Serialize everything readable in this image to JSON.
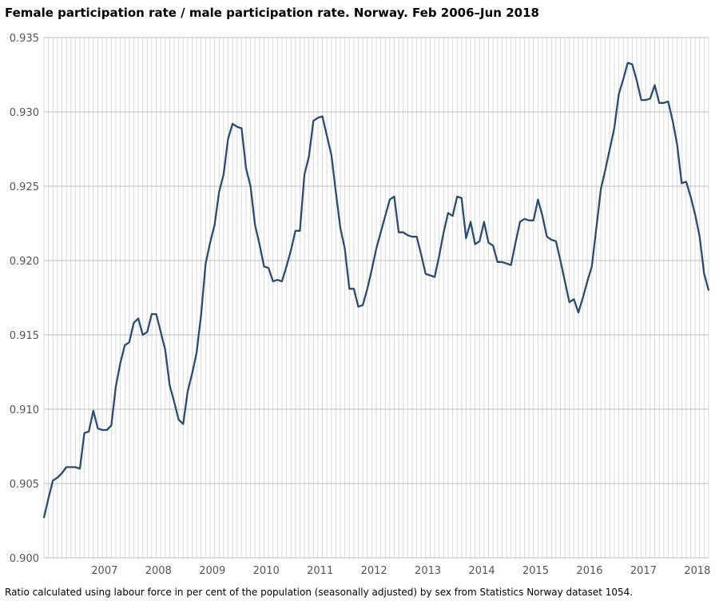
{
  "chart_data": {
    "type": "line",
    "title": "Female participation rate / male participation rate. Norway. Feb 2006–Jun 2018",
    "note": "Ratio calculated using labour force in per cent of the population (seasonally adjusted) by sex from Statistics Norway dataset 1054.",
    "xlabel": "",
    "ylabel": "",
    "start": "2006-02",
    "end": "2018-06",
    "frequency": "monthly",
    "ylim": [
      0.9,
      0.935
    ],
    "yticks": [
      "0.900",
      "0.905",
      "0.910",
      "0.915",
      "0.920",
      "0.925",
      "0.930",
      "0.935"
    ],
    "xticks": [
      "2007",
      "2008",
      "2009",
      "2010",
      "2011",
      "2012",
      "2013",
      "2014",
      "2015",
      "2016",
      "2017",
      "2018"
    ],
    "grid": true,
    "line_color": "#2b4c72",
    "series": [
      {
        "name": "ratio",
        "values": [
          0.9027,
          0.904,
          0.9052,
          0.9054,
          0.9057,
          0.9061,
          0.9061,
          0.9061,
          0.906,
          0.9084,
          0.9085,
          0.9099,
          0.9087,
          0.9086,
          0.9086,
          0.9089,
          0.9115,
          0.9131,
          0.9143,
          0.9145,
          0.9158,
          0.9161,
          0.915,
          0.9152,
          0.9164,
          0.9164,
          0.9152,
          0.914,
          0.9116,
          0.9105,
          0.9093,
          0.909,
          0.9112,
          0.9124,
          0.9138,
          0.9164,
          0.9198,
          0.9212,
          0.9224,
          0.9246,
          0.9258,
          0.9282,
          0.9292,
          0.929,
          0.9289,
          0.9262,
          0.925,
          0.9224,
          0.9211,
          0.9196,
          0.9195,
          0.9186,
          0.9187,
          0.9186,
          0.9196,
          0.9207,
          0.922,
          0.922,
          0.9258,
          0.927,
          0.9294,
          0.9296,
          0.9297,
          0.9284,
          0.9271,
          0.9246,
          0.9222,
          0.9208,
          0.9181,
          0.9181,
          0.9169,
          0.917,
          0.9181,
          0.9194,
          0.9208,
          0.9219,
          0.923,
          0.9241,
          0.9243,
          0.9219,
          0.9219,
          0.9217,
          0.9216,
          0.9216,
          0.9204,
          0.9191,
          0.919,
          0.9189,
          0.9203,
          0.9219,
          0.9232,
          0.923,
          0.9243,
          0.9242,
          0.9215,
          0.9226,
          0.9211,
          0.9213,
          0.9226,
          0.9212,
          0.921,
          0.9199,
          0.9199,
          0.9198,
          0.9197,
          0.9212,
          0.9226,
          0.9228,
          0.9227,
          0.9227,
          0.9241,
          0.923,
          0.9216,
          0.9214,
          0.9213,
          0.92,
          0.9186,
          0.9172,
          0.9174,
          0.9165,
          0.9175,
          0.9186,
          0.9196,
          0.9222,
          0.9248,
          0.9261,
          0.9275,
          0.9289,
          0.9312,
          0.9322,
          0.9333,
          0.9332,
          0.9321,
          0.9308,
          0.9308,
          0.9309,
          0.9318,
          0.9306,
          0.9306,
          0.9307,
          0.9294,
          0.9278,
          0.9252,
          0.9253,
          0.9243,
          0.9231,
          0.9216,
          0.9191,
          0.918
        ]
      }
    ]
  }
}
